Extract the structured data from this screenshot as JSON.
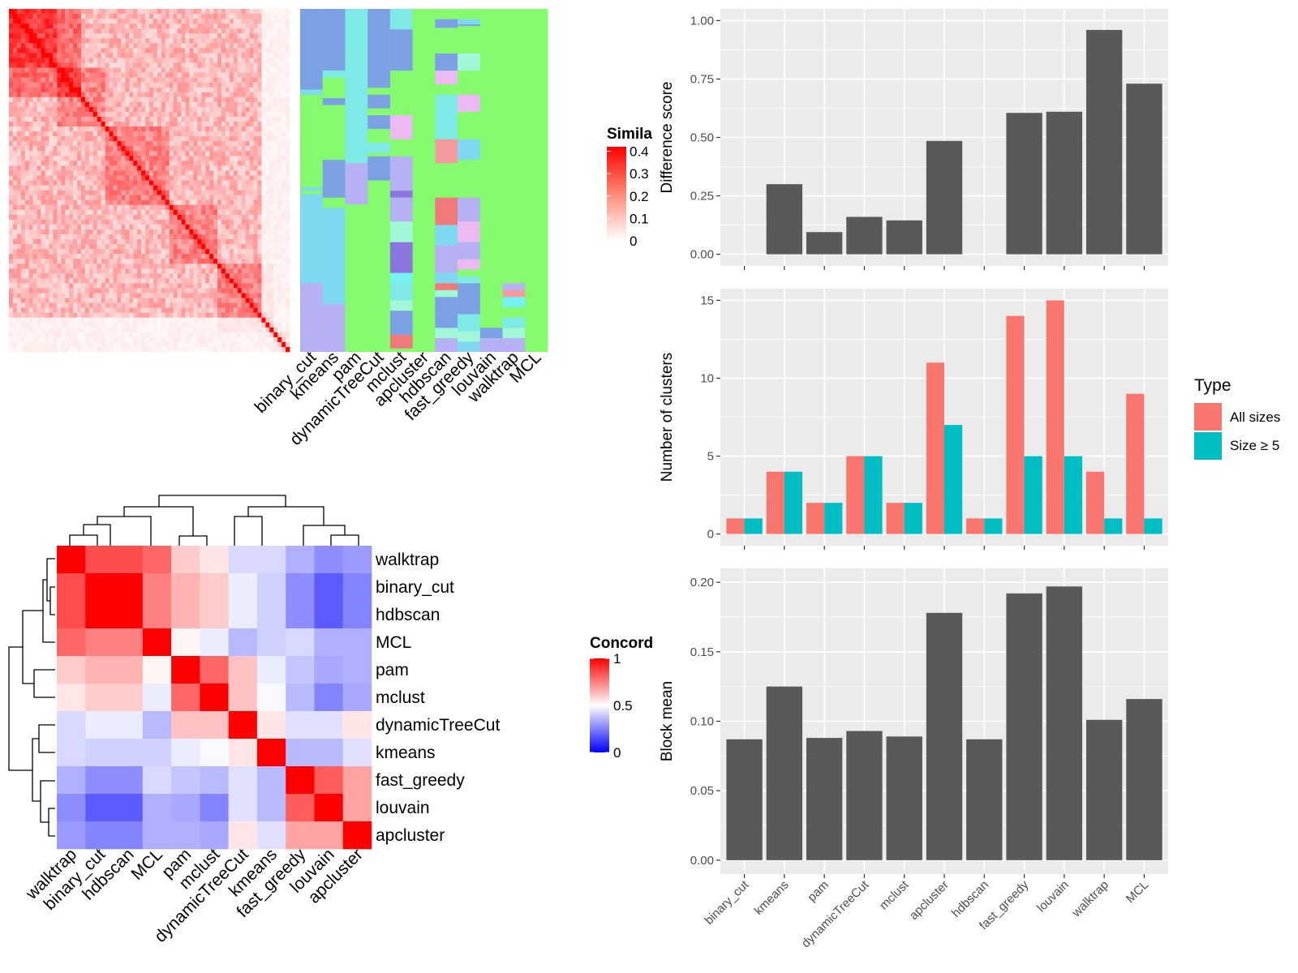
{
  "colors": {
    "panel_bg": "#ebebeb",
    "grid": "#ffffff",
    "bar_dark": "#595959",
    "all_sizes": "#f8766d",
    "size_ge5": "#00bfc4",
    "sim_high": "#ff0000",
    "sim_low": "#ffffff",
    "conc_high": "#ff0000",
    "conc_mid": "#ffffff",
    "conc_low": "#0000ff",
    "cluster_bg": "#85fa6f"
  },
  "similarity_heatmap": {
    "legend_title": "Simila",
    "legend_ticks": [
      "0.4",
      "0.3",
      "0.2",
      "0.1",
      "0"
    ],
    "legend_values": [
      0.4,
      0.3,
      0.2,
      0.1,
      0
    ],
    "n": 70
  },
  "cluster_annotation": {
    "methods": [
      "binary_cut",
      "kmeans",
      "pam",
      "dynamicTreeCut",
      "mclust",
      "apcluster",
      "hdbscan",
      "fast_greedy",
      "louvain",
      "walktrap",
      "MCL"
    ],
    "palette": [
      "#7ba1e4",
      "#7fe9e6",
      "#b6b0f5",
      "#7fd7f0",
      "#f39a9f",
      "#8b76e0",
      "#ecb9f3",
      "#a1f7d8",
      "#f07a7a",
      "#75f1f2",
      "#9dc5f3"
    ]
  },
  "concordance_heatmap": {
    "legend_title": "Concord",
    "legend_ticks": [
      "1",
      "0.5",
      "0"
    ],
    "legend_values": [
      1,
      0.5,
      0
    ],
    "col_labels": [
      "walktrap",
      "binary_cut",
      "hdbscan",
      "MCL",
      "pam",
      "mclust",
      "dynamicTreeCut",
      "kmeans",
      "fast_greedy",
      "louvain",
      "apcluster"
    ],
    "row_labels": [
      "walktrap",
      "binary_cut",
      "hdbscan",
      "MCL",
      "pam",
      "mclust",
      "dynamicTreeCut",
      "kmeans",
      "fast_greedy",
      "louvain",
      "apcluster"
    ]
  },
  "chart_data": [
    {
      "type": "bar",
      "categories": [
        "binary_cut",
        "kmeans",
        "pam",
        "dynamicTreeCut",
        "mclust",
        "apcluster",
        "hdbscan",
        "fast_greedy",
        "louvain",
        "walktrap",
        "MCL"
      ],
      "values": [
        0,
        0.3,
        0.095,
        0.16,
        0.145,
        0.485,
        0,
        0.605,
        0.61,
        0.96,
        0.73
      ],
      "title": "",
      "xlabel": "",
      "ylabel": "Difference score",
      "ylim": [
        0,
        1.0
      ],
      "yticks": [
        0,
        0.25,
        0.5,
        0.75,
        1.0
      ],
      "ytick_labels": [
        "0.00",
        "0.25",
        "0.50",
        "0.75",
        "1.00"
      ],
      "grid": true
    },
    {
      "type": "bar",
      "categories": [
        "binary_cut",
        "kmeans",
        "pam",
        "dynamicTreeCut",
        "mclust",
        "apcluster",
        "hdbscan",
        "fast_greedy",
        "louvain",
        "walktrap",
        "MCL"
      ],
      "series": [
        {
          "name": "All sizes",
          "values": [
            1,
            4,
            2,
            5,
            2,
            11,
            1,
            14,
            15,
            4,
            9
          ]
        },
        {
          "name": "Size ≥ 5",
          "values": [
            1,
            4,
            2,
            5,
            2,
            7,
            1,
            5,
            5,
            1,
            1
          ]
        }
      ],
      "title": "",
      "xlabel": "",
      "ylabel": "Number of clusters",
      "ylim": [
        0,
        15
      ],
      "yticks": [
        0,
        5,
        10,
        15
      ],
      "ytick_labels": [
        "0",
        "5",
        "10",
        "15"
      ],
      "legend_title": "Type",
      "legend_position": "right",
      "grid": true
    },
    {
      "type": "bar",
      "categories": [
        "binary_cut",
        "kmeans",
        "pam",
        "dynamicTreeCut",
        "mclust",
        "apcluster",
        "hdbscan",
        "fast_greedy",
        "louvain",
        "walktrap",
        "MCL"
      ],
      "values": [
        0.087,
        0.125,
        0.088,
        0.093,
        0.089,
        0.178,
        0.087,
        0.192,
        0.197,
        0.101,
        0.116
      ],
      "title": "",
      "xlabel": "",
      "ylabel": "Block mean",
      "ylim": [
        0,
        0.2
      ],
      "yticks": [
        0,
        0.05,
        0.1,
        0.15,
        0.2
      ],
      "ytick_labels": [
        "0.00",
        "0.05",
        "0.10",
        "0.15",
        "0.20"
      ],
      "grid": true
    },
    {
      "type": "heatmap",
      "rows": [
        "walktrap",
        "binary_cut",
        "hdbscan",
        "MCL",
        "pam",
        "mclust",
        "dynamicTreeCut",
        "kmeans",
        "fast_greedy",
        "louvain",
        "apcluster"
      ],
      "columns": [
        "walktrap",
        "binary_cut",
        "hdbscan",
        "MCL",
        "pam",
        "mclust",
        "dynamicTreeCut",
        "kmeans",
        "fast_greedy",
        "louvain",
        "apcluster"
      ],
      "values": [
        [
          1.0,
          0.85,
          0.85,
          0.8,
          0.6,
          0.55,
          0.4,
          0.4,
          0.3,
          0.22,
          0.25
        ],
        [
          0.85,
          1.0,
          1.0,
          0.75,
          0.65,
          0.6,
          0.45,
          0.38,
          0.22,
          0.12,
          0.2
        ],
        [
          0.85,
          1.0,
          1.0,
          0.75,
          0.65,
          0.6,
          0.45,
          0.38,
          0.22,
          0.12,
          0.2
        ],
        [
          0.8,
          0.75,
          0.75,
          1.0,
          0.52,
          0.45,
          0.32,
          0.38,
          0.4,
          0.3,
          0.3
        ],
        [
          0.6,
          0.65,
          0.65,
          0.52,
          1.0,
          0.8,
          0.62,
          0.45,
          0.35,
          0.28,
          0.3
        ],
        [
          0.55,
          0.6,
          0.6,
          0.45,
          0.8,
          1.0,
          0.62,
          0.48,
          0.32,
          0.2,
          0.28
        ],
        [
          0.4,
          0.45,
          0.45,
          0.32,
          0.62,
          0.62,
          1.0,
          0.55,
          0.42,
          0.42,
          0.55
        ],
        [
          0.4,
          0.38,
          0.38,
          0.38,
          0.45,
          0.48,
          0.55,
          1.0,
          0.32,
          0.32,
          0.42
        ],
        [
          0.3,
          0.22,
          0.22,
          0.4,
          0.35,
          0.32,
          0.42,
          0.32,
          1.0,
          0.82,
          0.68
        ],
        [
          0.22,
          0.12,
          0.12,
          0.3,
          0.28,
          0.2,
          0.42,
          0.32,
          0.82,
          1.0,
          0.68
        ],
        [
          0.25,
          0.2,
          0.2,
          0.3,
          0.3,
          0.28,
          0.55,
          0.42,
          0.68,
          0.68,
          1.0
        ]
      ],
      "colorscale": {
        "low": 0,
        "mid": 0.5,
        "high": 1
      }
    }
  ]
}
